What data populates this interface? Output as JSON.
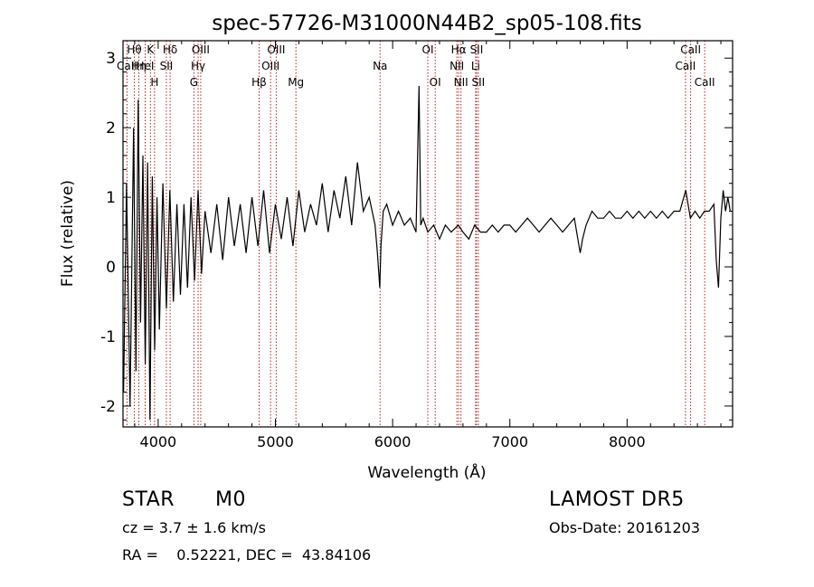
{
  "chart_data": {
    "type": "line",
    "title": "spec-57726-M31000N44B2_sp05-108.fits",
    "xlabel": "Wavelength (Å)",
    "ylabel": "Flux (relative)",
    "xlim": [
      3700,
      8900
    ],
    "ylim": [
      -2.3,
      3.25
    ],
    "xticks": [
      4000,
      5000,
      6000,
      7000,
      8000
    ],
    "yticks": [
      -2,
      -1,
      0,
      1,
      2,
      3
    ],
    "grid": false,
    "line_color": "#000000",
    "marker_color": "#b22222",
    "series": [
      {
        "x": [
          3705,
          3730,
          3760,
          3790,
          3810,
          3830,
          3850,
          3870,
          3890,
          3910,
          3930,
          3950,
          3970,
          3990,
          4010,
          4040,
          4070,
          4100,
          4130,
          4160,
          4190,
          4220,
          4250,
          4280,
          4310,
          4340,
          4370,
          4400,
          4450,
          4500,
          4550,
          4600,
          4650,
          4700,
          4750,
          4800,
          4850,
          4900,
          4950,
          5000,
          5050,
          5100,
          5150,
          5200,
          5250,
          5300,
          5350,
          5400,
          5450,
          5500,
          5550,
          5600,
          5650,
          5700,
          5750,
          5800,
          5850,
          5870,
          5890,
          5900,
          5920,
          5950,
          6000,
          6050,
          6100,
          6150,
          6200,
          6225,
          6240,
          6260,
          6300,
          6350,
          6400,
          6450,
          6500,
          6560,
          6600,
          6650,
          6700,
          6750,
          6800,
          6850,
          6900,
          6950,
          7000,
          7050,
          7100,
          7150,
          7200,
          7250,
          7300,
          7350,
          7400,
          7450,
          7500,
          7550,
          7600,
          7620,
          7650,
          7700,
          7750,
          7800,
          7850,
          7900,
          7950,
          8000,
          8050,
          8100,
          8150,
          8200,
          8250,
          8300,
          8350,
          8400,
          8450,
          8500,
          8540,
          8580,
          8620,
          8660,
          8700,
          8740,
          8760,
          8780,
          8800,
          8820,
          8840,
          8860,
          8880
        ],
        "y": [
          -1.8,
          1.2,
          -2.0,
          2.0,
          -1.5,
          2.4,
          -0.8,
          1.6,
          -1.4,
          1.5,
          -2.2,
          1.3,
          -1.2,
          1.0,
          -0.9,
          1.2,
          -0.6,
          1.1,
          -0.5,
          0.9,
          -0.4,
          0.9,
          -0.3,
          1.0,
          -0.2,
          1.1,
          -0.1,
          0.8,
          0.2,
          0.9,
          0.1,
          1.0,
          0.3,
          0.9,
          0.2,
          1.0,
          0.3,
          1.1,
          0.2,
          0.9,
          0.4,
          1.0,
          0.3,
          1.1,
          0.5,
          0.9,
          0.6,
          1.2,
          0.5,
          1.1,
          0.7,
          1.3,
          0.6,
          1.5,
          0.8,
          1.0,
          0.6,
          0.2,
          -0.3,
          0.3,
          0.8,
          0.9,
          0.6,
          0.8,
          0.6,
          0.7,
          0.5,
          2.6,
          0.6,
          0.7,
          0.5,
          0.6,
          0.4,
          0.6,
          0.5,
          0.6,
          0.5,
          0.4,
          0.6,
          0.5,
          0.5,
          0.6,
          0.5,
          0.6,
          0.6,
          0.5,
          0.6,
          0.7,
          0.6,
          0.5,
          0.6,
          0.7,
          0.6,
          0.5,
          0.6,
          0.7,
          0.2,
          0.4,
          0.6,
          0.8,
          0.7,
          0.7,
          0.8,
          0.7,
          0.7,
          0.8,
          0.7,
          0.8,
          0.7,
          0.8,
          0.7,
          0.8,
          0.7,
          0.8,
          0.8,
          1.1,
          0.7,
          0.8,
          0.7,
          0.8,
          0.8,
          0.9,
          0.1,
          -0.3,
          0.7,
          1.1,
          0.8,
          1.0,
          0.8
        ]
      }
    ],
    "spectral_lines": [
      {
        "label": "CaII",
        "x": 3734,
        "row": 1
      },
      {
        "label": "Hθ",
        "x": 3797,
        "row": 0
      },
      {
        "label": "Hη",
        "x": 3835,
        "row": 1
      },
      {
        "label": "K",
        "x": 3934,
        "row": 0
      },
      {
        "label": "HeI",
        "x": 3889,
        "row": 1
      },
      {
        "label": "H",
        "x": 3969,
        "row": 2
      },
      {
        "label": "SII",
        "x": 4070,
        "row": 1
      },
      {
        "label": "Hδ",
        "x": 4102,
        "row": 0
      },
      {
        "label": "OIII",
        "x": 4363,
        "row": 0
      },
      {
        "label": "Hγ",
        "x": 4341,
        "row": 1
      },
      {
        "label": "G",
        "x": 4305,
        "row": 2
      },
      {
        "label": "Hβ",
        "x": 4861,
        "row": 2
      },
      {
        "label": "OIII",
        "x": 5007,
        "row": 0
      },
      {
        "label": "OIII",
        "x": 4959,
        "row": 1
      },
      {
        "label": "Mg",
        "x": 5175,
        "row": 2
      },
      {
        "label": "Na",
        "x": 5893,
        "row": 1
      },
      {
        "label": "OI",
        "x": 6300,
        "row": 0
      },
      {
        "label": "OI",
        "x": 6363,
        "row": 2
      },
      {
        "label": "Hα",
        "x": 6563,
        "row": 0
      },
      {
        "label": "NII",
        "x": 6548,
        "row": 1
      },
      {
        "label": "NII",
        "x": 6583,
        "row": 2
      },
      {
        "label": "SII",
        "x": 6716,
        "row": 0
      },
      {
        "label": "Li",
        "x": 6708,
        "row": 1
      },
      {
        "label": "SII",
        "x": 6731,
        "row": 2
      },
      {
        "label": "CaII",
        "x": 8498,
        "row": 1
      },
      {
        "label": "CaII",
        "x": 8542,
        "row": 0
      },
      {
        "label": "CaII",
        "x": 8662,
        "row": 2
      }
    ]
  },
  "info": {
    "class_label": "STAR",
    "subclass": "M0",
    "survey": "LAMOST DR5",
    "cz": "cz = 3.7 ± 1.6 km/s",
    "obs_date": "Obs-Date: 20161203",
    "coords": "RA =    0.52221, DEC =  43.84106"
  }
}
